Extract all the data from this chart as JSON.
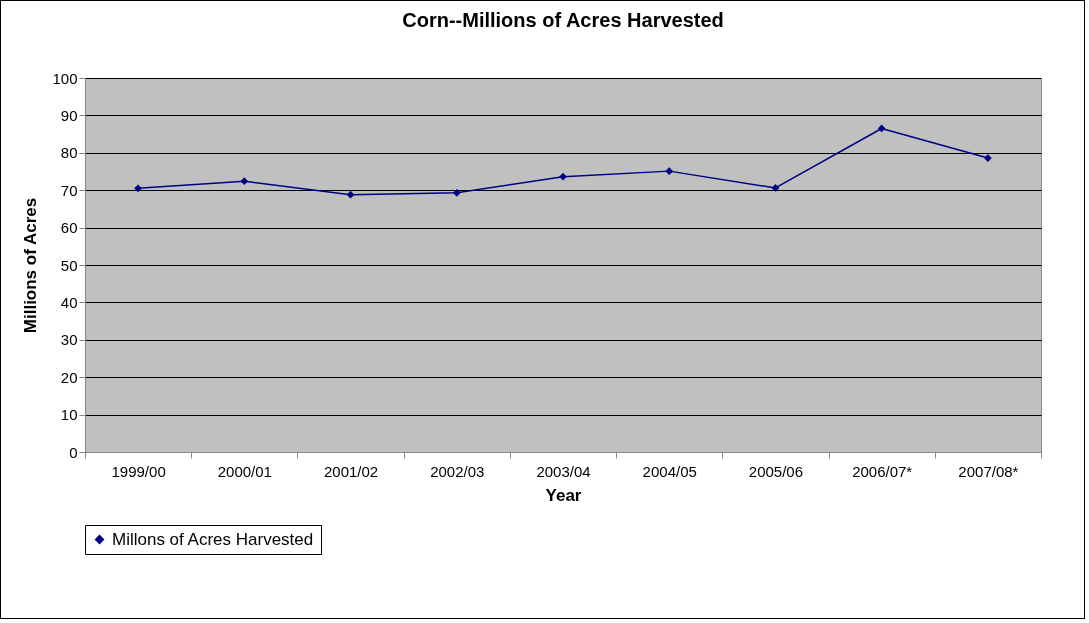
{
  "chart_data": {
    "type": "line",
    "title": "Corn--Millions of Acres Harvested",
    "xlabel": "Year",
    "ylabel": "Millions of Acres",
    "categories": [
      "1999/00",
      "2000/01",
      "2001/02",
      "2002/03",
      "2003/04",
      "2004/05",
      "2005/06",
      "2006/07*",
      "2007/08*"
    ],
    "series": [
      {
        "name": "Millons of Acres Harvested",
        "color": "#000080",
        "values": [
          70.5,
          72.4,
          68.8,
          69.3,
          73.6,
          75.1,
          70.6,
          86.5,
          78.6
        ]
      }
    ],
    "ylim": [
      0,
      100
    ],
    "yticks": [
      0,
      10,
      20,
      30,
      40,
      50,
      60,
      70,
      80,
      90,
      100
    ],
    "grid": "y",
    "legend": "bottom",
    "marker": "diamond",
    "line_style": "solid"
  }
}
